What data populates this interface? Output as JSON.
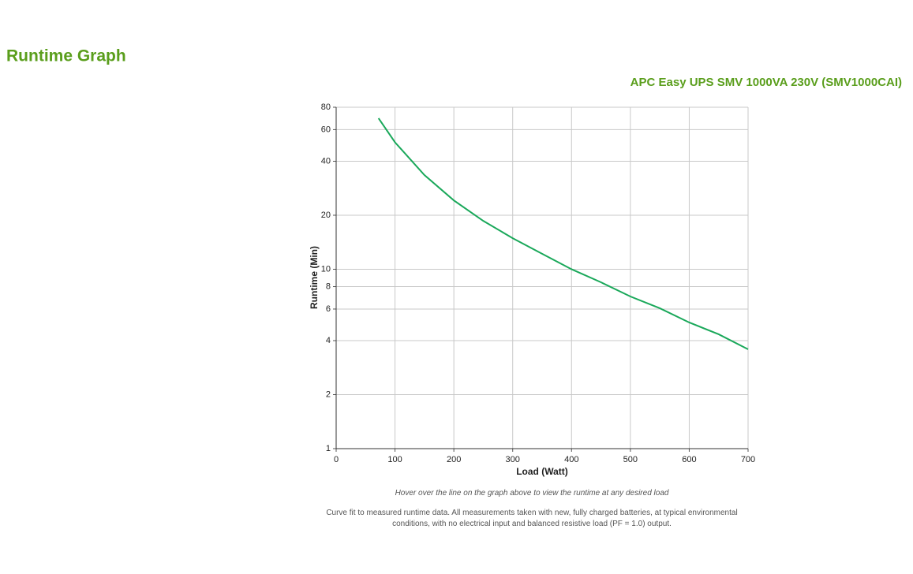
{
  "header": {
    "title": "Runtime Graph"
  },
  "chart_data": {
    "type": "line",
    "title": "APC Easy UPS SMV 1000VA 230V (SMV1000CAI)",
    "x_label": "Load (Watt)",
    "y_label": "Runtime (Min)",
    "x": [
      72,
      100,
      150,
      200,
      250,
      300,
      350,
      400,
      450,
      500,
      550,
      600,
      650,
      700
    ],
    "series": [
      {
        "name": "Runtime",
        "color": "#1aa85a",
        "values": [
          69.5,
          51,
          33.5,
          24.2,
          18.6,
          14.9,
          12.2,
          10.0,
          8.46,
          7.05,
          6.06,
          5.05,
          4.34,
          3.58
        ]
      }
    ],
    "xlim": [
      0,
      700
    ],
    "xticks": [
      0,
      100,
      200,
      300,
      400,
      500,
      600,
      700
    ],
    "ylim": [
      1,
      80
    ],
    "yticks": [
      1,
      2,
      4,
      6,
      8,
      10,
      20,
      40,
      60,
      80
    ],
    "ylog": true,
    "grid": true
  },
  "notes": {
    "hover": "Hover over the line on the graph above to view the runtime at any desired load",
    "footnote": "Curve fit to measured runtime data. All measurements taken with new, fully charged batteries, at typical environmental conditions, with no electrical input and balanced resistive load (PF = 1.0) output."
  }
}
